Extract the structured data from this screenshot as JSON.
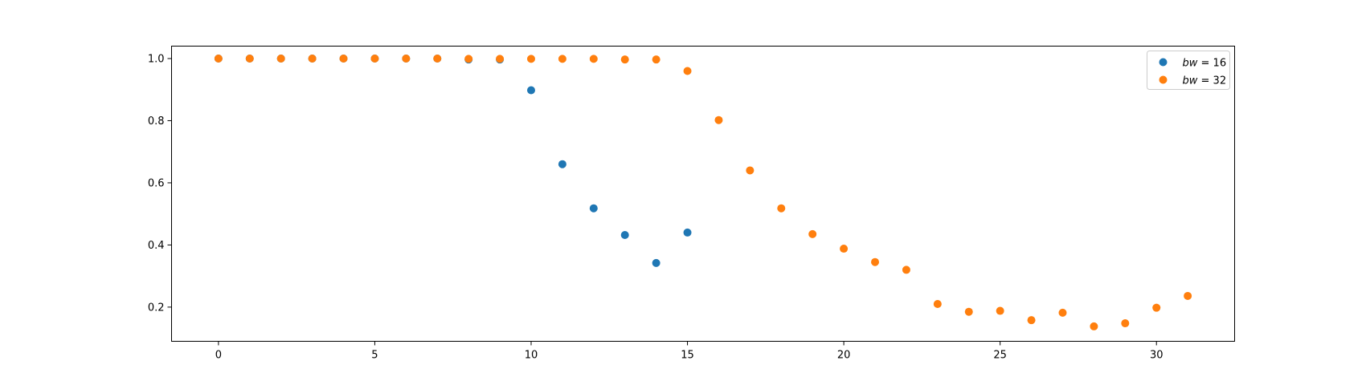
{
  "chart_data": {
    "type": "scatter",
    "title": "",
    "xlabel": "",
    "ylabel": "",
    "xlim": [
      -1.5,
      32.5
    ],
    "ylim": [
      0.09,
      1.04
    ],
    "xticks": [
      0,
      5,
      10,
      15,
      20,
      25,
      30
    ],
    "yticks": [
      0.2,
      0.4,
      0.6,
      0.8,
      1.0
    ],
    "xtick_labels": [
      "0",
      "5",
      "10",
      "15",
      "20",
      "25",
      "30"
    ],
    "ytick_labels": [
      "0.2",
      "0.4",
      "0.6",
      "0.8",
      "1.0"
    ],
    "grid": false,
    "legend_position": "top-right",
    "series": [
      {
        "name": "bw = 16",
        "legend_var": "bw",
        "legend_value": "= 16",
        "color": "#1f77b4",
        "x": [
          0,
          1,
          2,
          3,
          4,
          5,
          6,
          7,
          8,
          9,
          10,
          11,
          12,
          13,
          14,
          15
        ],
        "y": [
          1.0,
          1.0,
          1.0,
          1.0,
          1.0,
          1.0,
          1.0,
          1.0,
          0.997,
          0.997,
          0.898,
          0.66,
          0.518,
          0.432,
          0.342,
          0.44
        ]
      },
      {
        "name": "bw = 32",
        "legend_var": "bw",
        "legend_value": "= 32",
        "color": "#ff7f0e",
        "x": [
          0,
          1,
          2,
          3,
          4,
          5,
          6,
          7,
          8,
          9,
          10,
          11,
          12,
          13,
          14,
          15,
          16,
          17,
          18,
          19,
          20,
          21,
          22,
          23,
          24,
          25,
          26,
          27,
          28,
          29,
          30,
          31
        ],
        "y": [
          1.0,
          1.0,
          1.0,
          1.0,
          1.0,
          1.0,
          1.0,
          1.0,
          0.999,
          0.999,
          0.999,
          0.999,
          0.999,
          0.997,
          0.997,
          0.96,
          0.802,
          0.64,
          0.518,
          0.435,
          0.388,
          0.345,
          0.32,
          0.21,
          0.185,
          0.188,
          0.158,
          0.182,
          0.138,
          0.148,
          0.198,
          0.236
        ]
      }
    ]
  }
}
